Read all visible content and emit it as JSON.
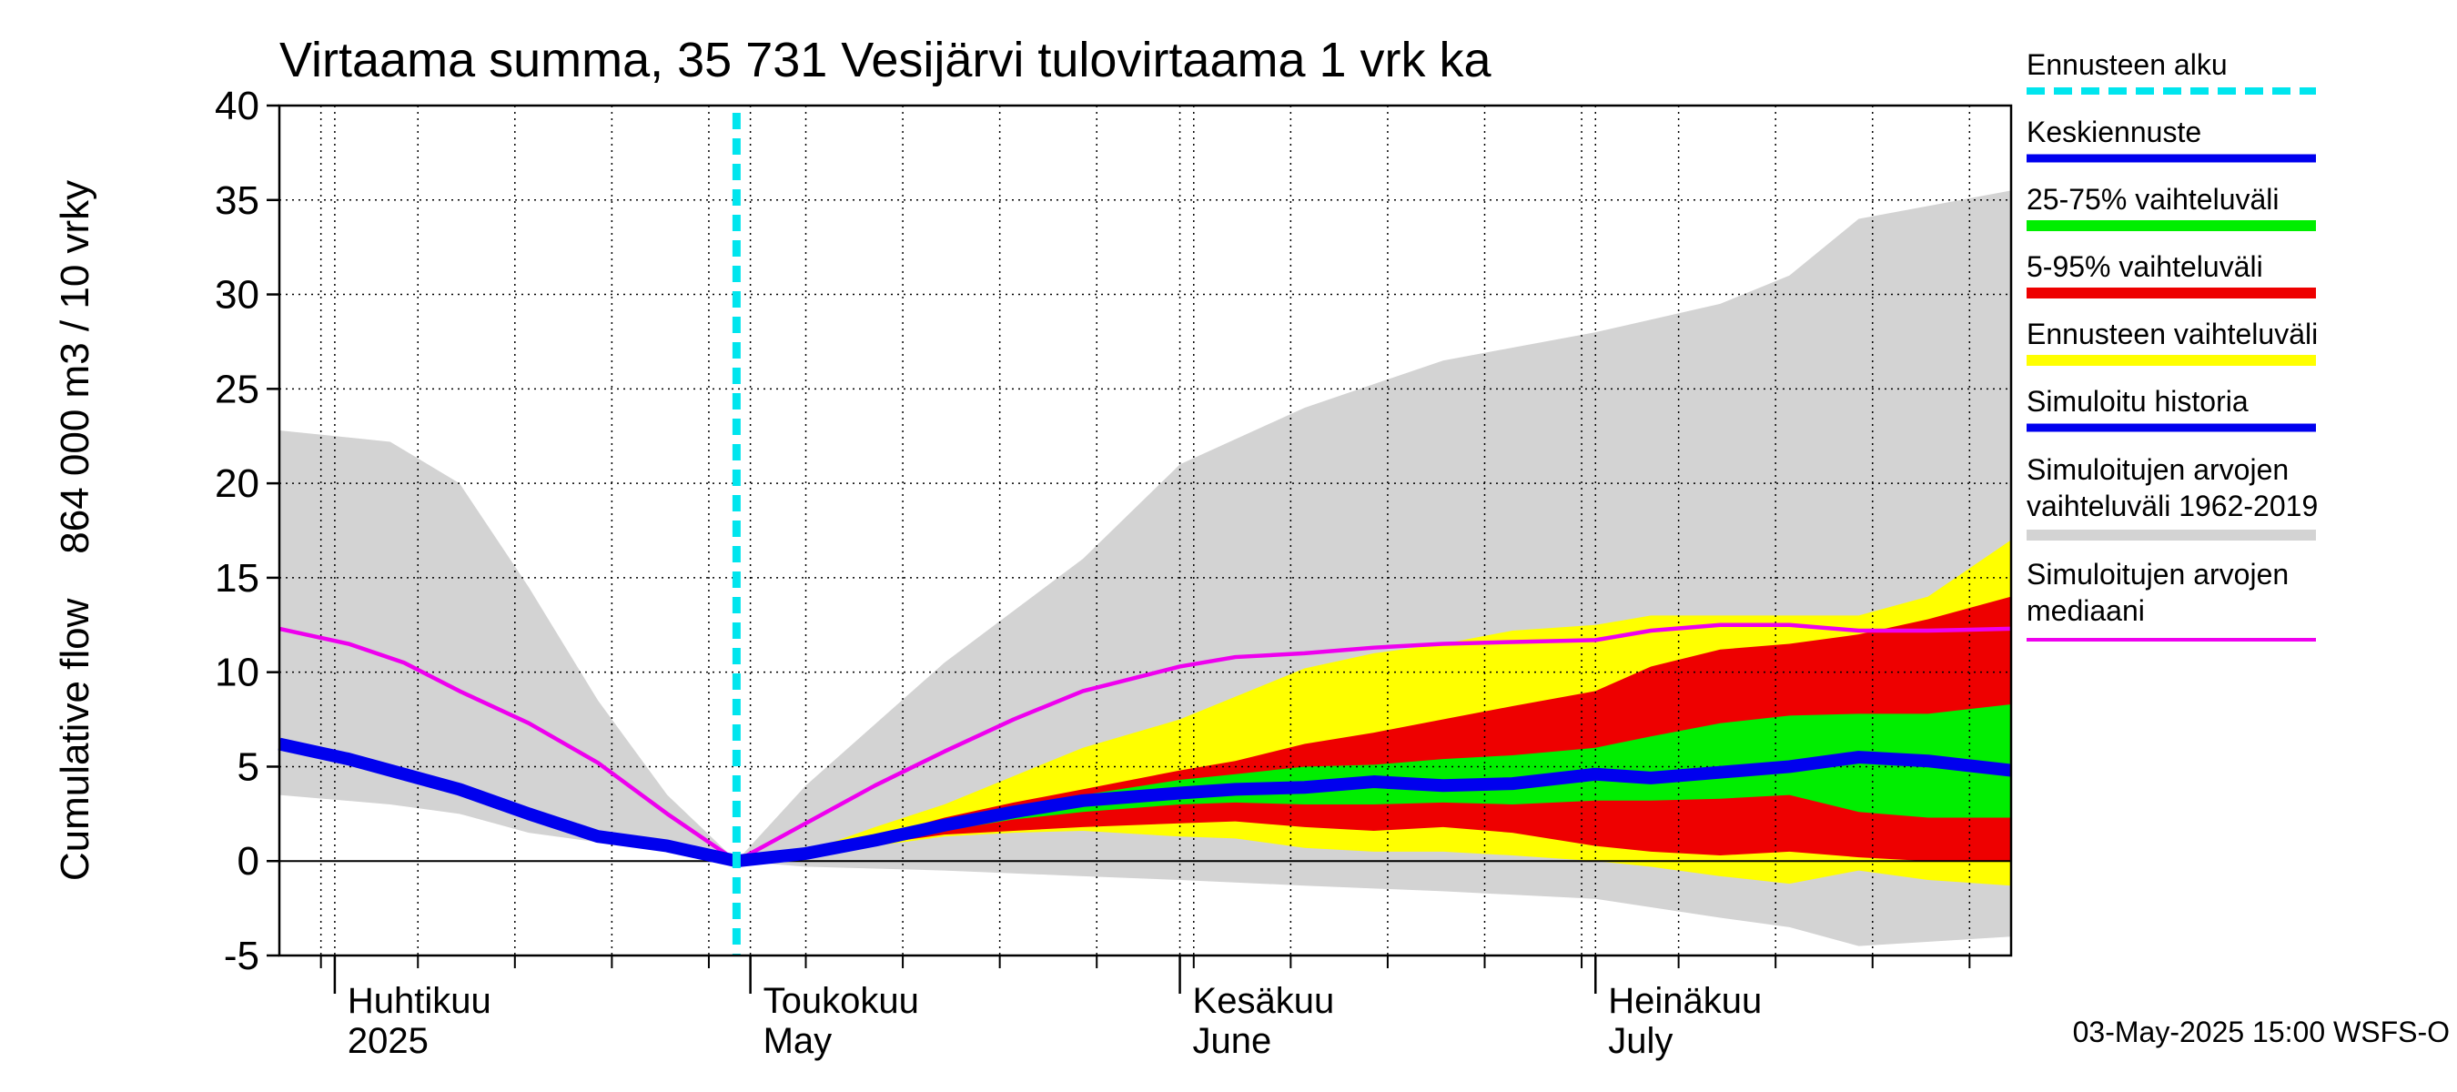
{
  "chart_data": {
    "type": "area",
    "title": "Virtaama summa, 35 731 Vesijärvi tulovirtaama 1 vrk ka",
    "ylabel": "Cumulative flow    864 000 m3 / 10 vrky",
    "ylim": [
      -5,
      40
    ],
    "yticks": [
      -5,
      0,
      5,
      10,
      15,
      20,
      25,
      30,
      35,
      40
    ],
    "xlim": [
      "2025-03-28",
      "2025-07-31"
    ],
    "grid": true,
    "months": [
      {
        "line1": "Huhtikuu",
        "line2": "2025",
        "date": "2025-04-01"
      },
      {
        "line1": "Toukokuu",
        "line2": "May",
        "date": "2025-05-01"
      },
      {
        "line1": "Kesäkuu",
        "line2": "June",
        "date": "2025-06-01"
      },
      {
        "line1": "Heinäkuu",
        "line2": "July",
        "date": "2025-07-01"
      }
    ],
    "forecast_start": "2025-04-30",
    "legend_position": "right",
    "legend": [
      {
        "label": "Ennusteen alku",
        "color": "#00e5ee",
        "style": "dashed"
      },
      {
        "label": "Keskiennuste",
        "color": "#0000ee",
        "style": "solid"
      },
      {
        "label": "25-75% vaihteluväli",
        "color": "#00ee00",
        "style": "solid"
      },
      {
        "label": "5-95% vaihteluväli",
        "color": "#ee0000",
        "style": "solid"
      },
      {
        "label": "Ennusteen vaihteluväli",
        "color": "#ffff00",
        "style": "solid"
      },
      {
        "label": "Simuloitu historia",
        "color": "#0000ee",
        "style": "solid"
      },
      {
        "label": "Simuloitujen arvojen vaihteluväli 1962-2019",
        "color": "#d3d3d3",
        "style": "solid"
      },
      {
        "label": "Simuloitujen arvojen mediaani",
        "color": "#ee00ee",
        "style": "solid"
      }
    ],
    "colors": {
      "historical_range": "#d3d3d3",
      "forecast_range": "#ffff00",
      "p5_95": "#ee0000",
      "p25_75": "#00ee00",
      "mean_forecast": "#0000ee",
      "simulated_history": "#0000ee",
      "median": "#ee00ee",
      "forecast_start": "#00e5ee"
    },
    "series": [
      {
        "name": "Simuloitujen arvojen vaihteluväli 1962-2019",
        "kind": "band",
        "x": [
          "2025-03-28",
          "2025-04-05",
          "2025-04-10",
          "2025-04-15",
          "2025-04-20",
          "2025-04-25",
          "2025-04-30",
          "2025-05-05",
          "2025-05-15",
          "2025-05-25",
          "2025-06-01",
          "2025-06-10",
          "2025-06-20",
          "2025-07-01",
          "2025-07-10",
          "2025-07-15",
          "2025-07-20",
          "2025-07-31"
        ],
        "low": [
          3.5,
          3.0,
          2.5,
          1.5,
          1.0,
          0.5,
          0.0,
          -0.3,
          -0.5,
          -0.8,
          -1.0,
          -1.3,
          -1.6,
          -2.0,
          -3.0,
          -3.5,
          -4.5,
          -4.0
        ],
        "high": [
          22.8,
          22.2,
          20.0,
          14.5,
          8.5,
          3.5,
          0.0,
          4.0,
          10.5,
          16.0,
          21.0,
          24.0,
          26.5,
          28.0,
          29.5,
          31.0,
          34.0,
          35.5
        ]
      },
      {
        "name": "Ennusteen vaihteluväli",
        "kind": "band",
        "x": [
          "2025-04-30",
          "2025-05-05",
          "2025-05-10",
          "2025-05-15",
          "2025-05-20",
          "2025-05-25",
          "2025-06-01",
          "2025-06-05",
          "2025-06-10",
          "2025-06-15",
          "2025-06-20",
          "2025-06-25",
          "2025-07-01",
          "2025-07-05",
          "2025-07-10",
          "2025-07-15",
          "2025-07-20",
          "2025-07-25",
          "2025-07-31"
        ],
        "low": [
          0.0,
          0.2,
          0.8,
          1.3,
          1.5,
          1.6,
          1.3,
          1.2,
          0.7,
          0.5,
          0.5,
          0.3,
          0.0,
          -0.3,
          -0.8,
          -1.2,
          -0.5,
          -1.0,
          -1.3
        ],
        "high": [
          0.0,
          0.5,
          1.8,
          3.0,
          4.5,
          6.0,
          7.5,
          8.7,
          10.2,
          11.0,
          11.5,
          12.2,
          12.5,
          13.0,
          13.0,
          13.0,
          13.0,
          14.0,
          17.0
        ]
      },
      {
        "name": "5-95% vaihteluväli",
        "kind": "band",
        "x": [
          "2025-04-30",
          "2025-05-05",
          "2025-05-10",
          "2025-05-15",
          "2025-05-20",
          "2025-05-25",
          "2025-06-01",
          "2025-06-05",
          "2025-06-10",
          "2025-06-15",
          "2025-06-20",
          "2025-06-25",
          "2025-07-01",
          "2025-07-05",
          "2025-07-10",
          "2025-07-15",
          "2025-07-20",
          "2025-07-25",
          "2025-07-31"
        ],
        "low": [
          0.0,
          0.2,
          0.9,
          1.4,
          1.6,
          1.8,
          2.0,
          2.1,
          1.8,
          1.6,
          1.8,
          1.5,
          0.8,
          0.5,
          0.3,
          0.5,
          0.2,
          0.0,
          0.0
        ],
        "high": [
          0.0,
          0.4,
          1.3,
          2.3,
          3.1,
          3.8,
          4.8,
          5.3,
          6.2,
          6.8,
          7.5,
          8.2,
          9.0,
          10.3,
          11.2,
          11.5,
          12.0,
          12.8,
          14.0
        ]
      },
      {
        "name": "25-75% vaihteluväli",
        "kind": "band",
        "x": [
          "2025-04-30",
          "2025-05-05",
          "2025-05-10",
          "2025-05-15",
          "2025-05-20",
          "2025-05-25",
          "2025-06-01",
          "2025-06-05",
          "2025-06-10",
          "2025-06-15",
          "2025-06-20",
          "2025-06-25",
          "2025-07-01",
          "2025-07-05",
          "2025-07-10",
          "2025-07-15",
          "2025-07-20",
          "2025-07-25",
          "2025-07-31"
        ],
        "low": [
          0.0,
          0.3,
          1.0,
          1.6,
          2.2,
          2.6,
          3.0,
          3.1,
          3.0,
          3.0,
          3.1,
          3.0,
          3.2,
          3.2,
          3.3,
          3.5,
          2.6,
          2.3,
          2.3
        ],
        "high": [
          0.0,
          0.4,
          1.2,
          2.0,
          2.8,
          3.5,
          4.3,
          4.6,
          5.0,
          5.1,
          5.4,
          5.6,
          6.0,
          6.6,
          7.3,
          7.7,
          7.8,
          7.8,
          8.3
        ]
      },
      {
        "name": "Simuloitujen arvojen mediaani",
        "kind": "line",
        "x": [
          "2025-03-28",
          "2025-04-02",
          "2025-04-06",
          "2025-04-10",
          "2025-04-15",
          "2025-04-20",
          "2025-04-25",
          "2025-04-30",
          "2025-05-05",
          "2025-05-10",
          "2025-05-15",
          "2025-05-20",
          "2025-05-25",
          "2025-06-01",
          "2025-06-05",
          "2025-06-10",
          "2025-06-15",
          "2025-06-20",
          "2025-06-25",
          "2025-07-01",
          "2025-07-05",
          "2025-07-10",
          "2025-07-15",
          "2025-07-20",
          "2025-07-25",
          "2025-07-31"
        ],
        "y": [
          12.3,
          11.5,
          10.5,
          9.0,
          7.3,
          5.2,
          2.5,
          0.0,
          2.0,
          4.0,
          5.8,
          7.5,
          9.0,
          10.3,
          10.8,
          11.0,
          11.3,
          11.5,
          11.6,
          11.7,
          12.2,
          12.5,
          12.5,
          12.2,
          12.2,
          12.3
        ]
      },
      {
        "name": "Simuloitu historia",
        "kind": "line",
        "x": [
          "2025-03-28",
          "2025-04-02",
          "2025-04-06",
          "2025-04-10",
          "2025-04-15",
          "2025-04-20",
          "2025-04-25",
          "2025-04-30"
        ],
        "y": [
          6.2,
          5.4,
          4.6,
          3.8,
          2.5,
          1.3,
          0.8,
          0.0
        ]
      },
      {
        "name": "Keskiennuste",
        "kind": "line",
        "x": [
          "2025-04-30",
          "2025-05-05",
          "2025-05-10",
          "2025-05-15",
          "2025-05-20",
          "2025-05-25",
          "2025-06-01",
          "2025-06-05",
          "2025-06-10",
          "2025-06-15",
          "2025-06-20",
          "2025-06-25",
          "2025-07-01",
          "2025-07-05",
          "2025-07-10",
          "2025-07-15",
          "2025-07-20",
          "2025-07-25",
          "2025-07-31"
        ],
        "y": [
          0.0,
          0.4,
          1.1,
          1.9,
          2.6,
          3.2,
          3.6,
          3.8,
          3.9,
          4.2,
          4.0,
          4.1,
          4.6,
          4.4,
          4.7,
          5.0,
          5.5,
          5.3,
          4.8
        ]
      }
    ]
  },
  "footer": "03-May-2025 15:00 WSFS-O"
}
